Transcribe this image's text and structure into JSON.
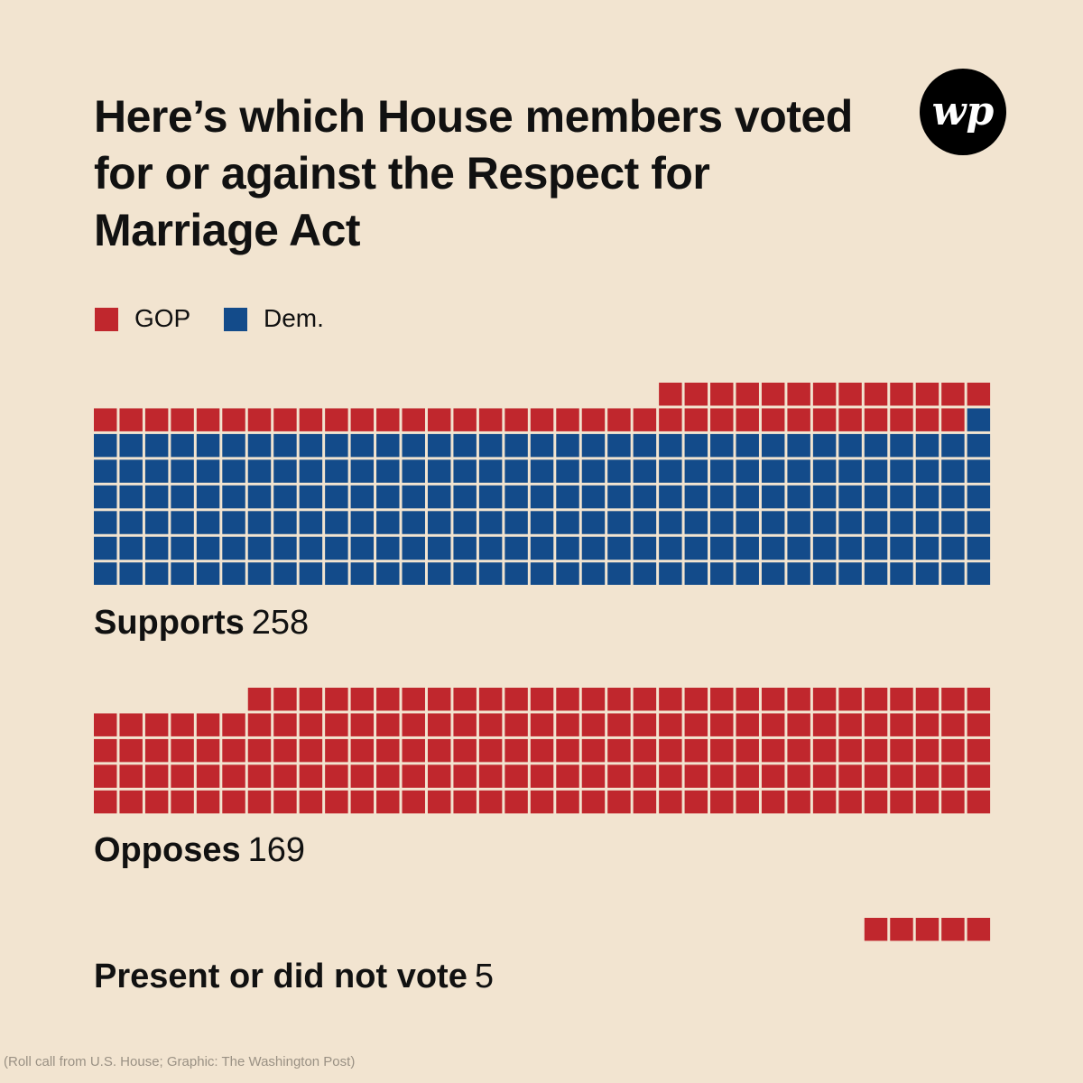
{
  "title": "Here’s which House members voted for or against the Respect for Marriage Act",
  "logo": {
    "icon": "washington-post-logo",
    "text": "wp"
  },
  "colors": {
    "background": "#f2e4d0",
    "gop": "#c0272d",
    "dem": "#134b8a"
  },
  "legend": [
    {
      "label": "GOP",
      "color": "#c0272d"
    },
    {
      "label": "Dem.",
      "color": "#134b8a"
    }
  ],
  "source": "(Roll call from U.S. House; Graphic: The Washington Post)",
  "chart_data": {
    "type": "waffle",
    "unit": "1 square = 1 House member",
    "series_names": [
      "GOP",
      "Dem."
    ],
    "groups": [
      {
        "label": "Supports",
        "count": "258",
        "total": 258,
        "gop": 47,
        "dem": 211
      },
      {
        "label": "Opposes",
        "count": "169",
        "total": 169,
        "gop": 169,
        "dem": 0
      },
      {
        "label": "Present or did not vote",
        "count": "5",
        "total": 5,
        "gop": 5,
        "dem": 0
      }
    ]
  }
}
